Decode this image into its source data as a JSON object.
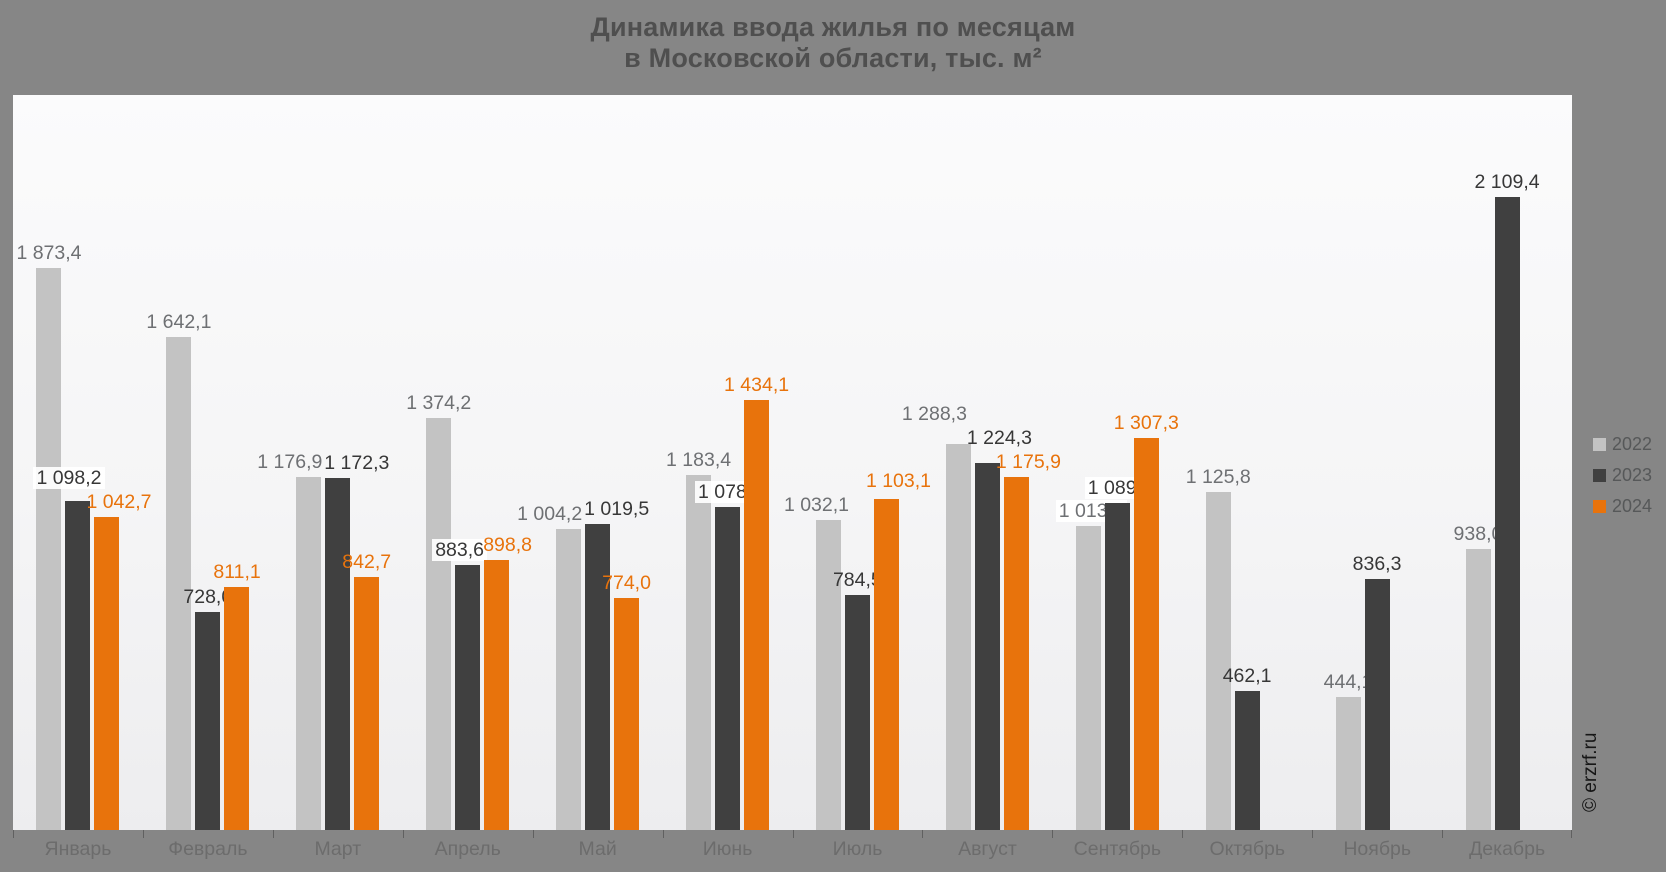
{
  "title": {
    "line1": "Динамика ввода жилья по месяцам",
    "line2": "в Московской области, тыс. м²"
  },
  "watermark": "© erzrf.ru",
  "legend": [
    {
      "label": "2022",
      "color": "#c3c3c3"
    },
    {
      "label": "2023",
      "color": "#404040"
    },
    {
      "label": "2024",
      "color": "#e8730c"
    }
  ],
  "chart_data": {
    "type": "bar",
    "title": "Динамика ввода жилья по месяцам в Московской области, тыс. м²",
    "ylabel": "тыс. м²",
    "categories": [
      "Январь",
      "Февраль",
      "Март",
      "Апрель",
      "Май",
      "Июнь",
      "Июль",
      "Август",
      "Сентябрь",
      "Октябрь",
      "Ноябрь",
      "Декабрь"
    ],
    "series": [
      {
        "name": "2022",
        "color": "#c3c3c3",
        "label_color": "#6e7073",
        "values": [
          1873.4,
          1642.1,
          1176.9,
          1374.2,
          1004.2,
          1183.4,
          1032.1,
          1288.3,
          1013.8,
          1125.8,
          444.1,
          938.0
        ],
        "labels": [
          "1 873,4",
          "1 642,1",
          "1 176,9",
          "1 374,2",
          "1 004,2",
          "1 183,4",
          "1 032,1",
          "1 288,3",
          "1 013,8",
          "1 125,8",
          "444,1",
          "938,0"
        ]
      },
      {
        "name": "2023",
        "color": "#404040",
        "label_color": "#373737",
        "values": [
          1098.2,
          728.0,
          1172.3,
          883.6,
          1019.5,
          1078.0,
          784.5,
          1224.3,
          1089.5,
          462.1,
          836.3,
          2109.4
        ],
        "labels": [
          "1 098,2",
          "728,0",
          "1 172,3",
          "883,6",
          "1 019,5",
          "1 078,0",
          "784,5",
          "1 224,3",
          "1 089,5",
          "462,1",
          "836,3",
          "2 109,4"
        ]
      },
      {
        "name": "2024",
        "color": "#e8730c",
        "label_color": "#e8730c",
        "values": [
          1042.7,
          811.1,
          842.7,
          898.8,
          774.0,
          1434.1,
          1103.1,
          1175.9,
          1307.3,
          null,
          null,
          null
        ],
        "labels": [
          "1 042,7",
          "811,1",
          "842,7",
          "898,8",
          "774,0",
          "1 434,1",
          "1 103,1",
          "1 175,9",
          "1 307,3",
          null,
          null,
          null
        ]
      }
    ],
    "ylim": [
      0,
      2450
    ],
    "grid": false,
    "legend_position": "right",
    "data_labels": true
  }
}
